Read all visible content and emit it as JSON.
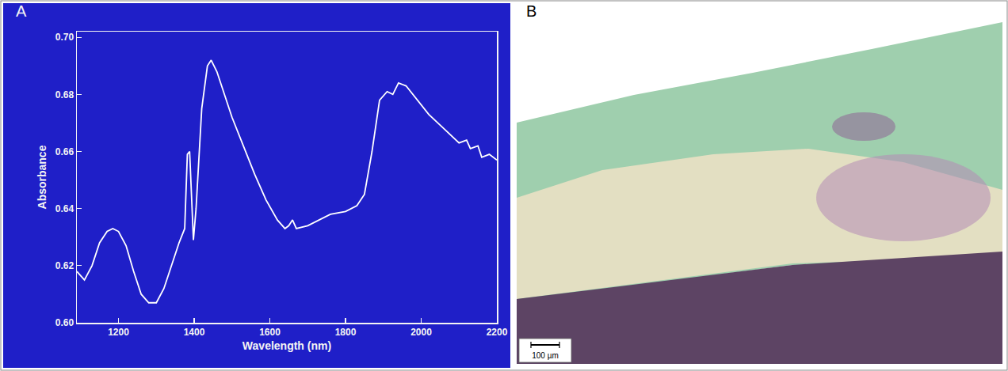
{
  "chart_data": {
    "type": "line",
    "panel_label": "A",
    "xlabel": "Wavelength (nm)",
    "ylabel": "Absorbance",
    "x": [
      1090,
      1110,
      1130,
      1150,
      1170,
      1185,
      1200,
      1220,
      1240,
      1260,
      1280,
      1300,
      1320,
      1340,
      1360,
      1375,
      1382,
      1388,
      1393,
      1398,
      1405,
      1420,
      1435,
      1445,
      1460,
      1480,
      1500,
      1530,
      1560,
      1590,
      1620,
      1640,
      1650,
      1660,
      1670,
      1700,
      1730,
      1760,
      1800,
      1830,
      1850,
      1870,
      1890,
      1910,
      1925,
      1940,
      1960,
      1990,
      2020,
      2060,
      2100,
      2120,
      2130,
      2150,
      2160,
      2180,
      2200
    ],
    "values": [
      0.618,
      0.615,
      0.62,
      0.628,
      0.632,
      0.633,
      0.632,
      0.627,
      0.618,
      0.61,
      0.607,
      0.607,
      0.612,
      0.62,
      0.628,
      0.633,
      0.659,
      0.66,
      0.645,
      0.629,
      0.64,
      0.675,
      0.69,
      0.692,
      0.688,
      0.68,
      0.672,
      0.662,
      0.652,
      0.643,
      0.636,
      0.633,
      0.634,
      0.636,
      0.633,
      0.634,
      0.636,
      0.638,
      0.639,
      0.641,
      0.645,
      0.66,
      0.678,
      0.681,
      0.68,
      0.684,
      0.683,
      0.678,
      0.673,
      0.668,
      0.663,
      0.664,
      0.661,
      0.662,
      0.658,
      0.659,
      0.657
    ],
    "color": "#ffffff",
    "xlim": [
      1090,
      2200
    ],
    "xticks": [
      1200,
      1400,
      1600,
      1800,
      2000,
      2200
    ],
    "ylim": [
      0.6,
      0.702
    ],
    "yticks": [
      {
        "value": 0.6,
        "label": "0.60"
      },
      0.62,
      0.64,
      0.66,
      0.68,
      {
        "value": 0.7,
        "label": "0.70"
      }
    ],
    "grid": false
  },
  "micrograph": {
    "panel_label": "B",
    "scale_bar_label": "100 µm"
  }
}
